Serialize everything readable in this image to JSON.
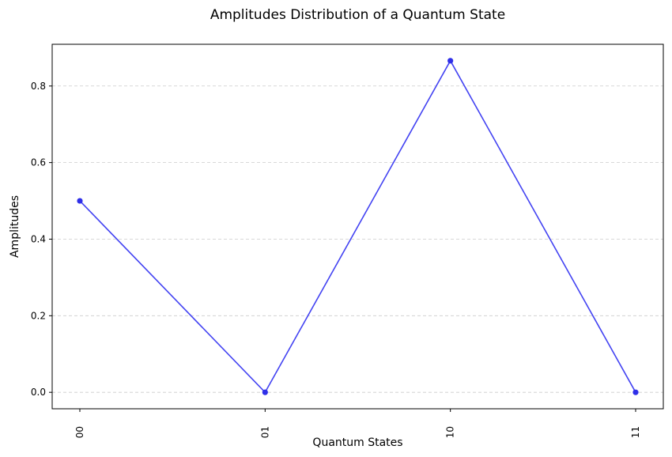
{
  "chart_data": {
    "type": "line",
    "title": "Amplitudes Distribution of a Quantum State",
    "xlabel": "Quantum States",
    "ylabel": "Amplitudes",
    "categories": [
      "00",
      "01",
      "10",
      "11"
    ],
    "series": [
      {
        "values": [
          0.5,
          0.0,
          0.866,
          0.0
        ]
      }
    ],
    "ylim": [
      -0.043,
      0.909
    ],
    "yticks": [
      0.0,
      0.2,
      0.4,
      0.6,
      0.8
    ],
    "ytick_labels": [
      "0.0",
      "0.2",
      "0.4",
      "0.6",
      "0.8"
    ],
    "grid": "y, dashed",
    "colors": {
      "line": "#4343f2",
      "marker": "#2f2fe8"
    }
  }
}
